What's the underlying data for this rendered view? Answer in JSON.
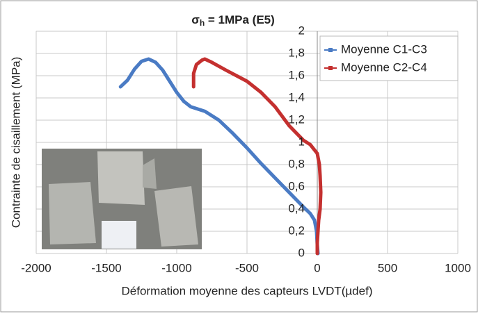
{
  "chart_data": {
    "type": "line",
    "title": {
      "symbol": "σ",
      "subscript": "h",
      "rest": " = 1MPa (E5)"
    },
    "x_label": "Déformation moyenne des capteurs LVDT(µdef)",
    "y_label": "Contrainte de cisaillement (MPa)",
    "xlim": [
      -2000,
      1000
    ],
    "xticks": [
      -2000,
      -1500,
      -1000,
      -500,
      0,
      500,
      1000
    ],
    "ylim": [
      0,
      2
    ],
    "yticks": [
      0,
      {
        "value": 0.2,
        "label": "0,2"
      },
      {
        "value": 0.4,
        "label": "0,4"
      },
      {
        "value": 0.6,
        "label": "0,6"
      },
      {
        "value": 0.8,
        "label": "0,8"
      },
      1,
      {
        "value": 1.2,
        "label": "1,2"
      },
      {
        "value": 1.4,
        "label": "1,4"
      },
      {
        "value": 1.6,
        "label": "1,6"
      },
      {
        "value": 1.8,
        "label": "1,8"
      },
      2
    ],
    "grid": true,
    "legend": "upper right",
    "series": [
      {
        "name": "Moyenne C1-C3",
        "color": "#4a7bc4",
        "x": [
          -1400,
          -1350,
          -1300,
          -1250,
          -1200,
          -1150,
          -1100,
          -1050,
          -1000,
          -950,
          -900,
          -800,
          -700,
          -600,
          -500,
          -400,
          -300,
          -200,
          -100,
          -50,
          -20,
          -5,
          0,
          5
        ],
        "values": [
          1.5,
          1.56,
          1.66,
          1.73,
          1.75,
          1.72,
          1.65,
          1.55,
          1.45,
          1.37,
          1.32,
          1.28,
          1.2,
          1.08,
          0.95,
          0.81,
          0.68,
          0.55,
          0.42,
          0.36,
          0.3,
          0.2,
          0.08,
          0
        ]
      },
      {
        "name": "Moyenne C2-C4",
        "color": "#c4302f",
        "x": [
          -880,
          -880,
          -860,
          -820,
          -800,
          -750,
          -650,
          -500,
          -400,
          -300,
          -200,
          -100,
          -50,
          0,
          15,
          20,
          25,
          20,
          10,
          0,
          0
        ],
        "values": [
          1.5,
          1.62,
          1.7,
          1.74,
          1.75,
          1.72,
          1.65,
          1.55,
          1.45,
          1.32,
          1.15,
          1.02,
          0.98,
          0.9,
          0.8,
          0.7,
          0.55,
          0.4,
          0.3,
          0.1,
          0
        ]
      }
    ]
  }
}
